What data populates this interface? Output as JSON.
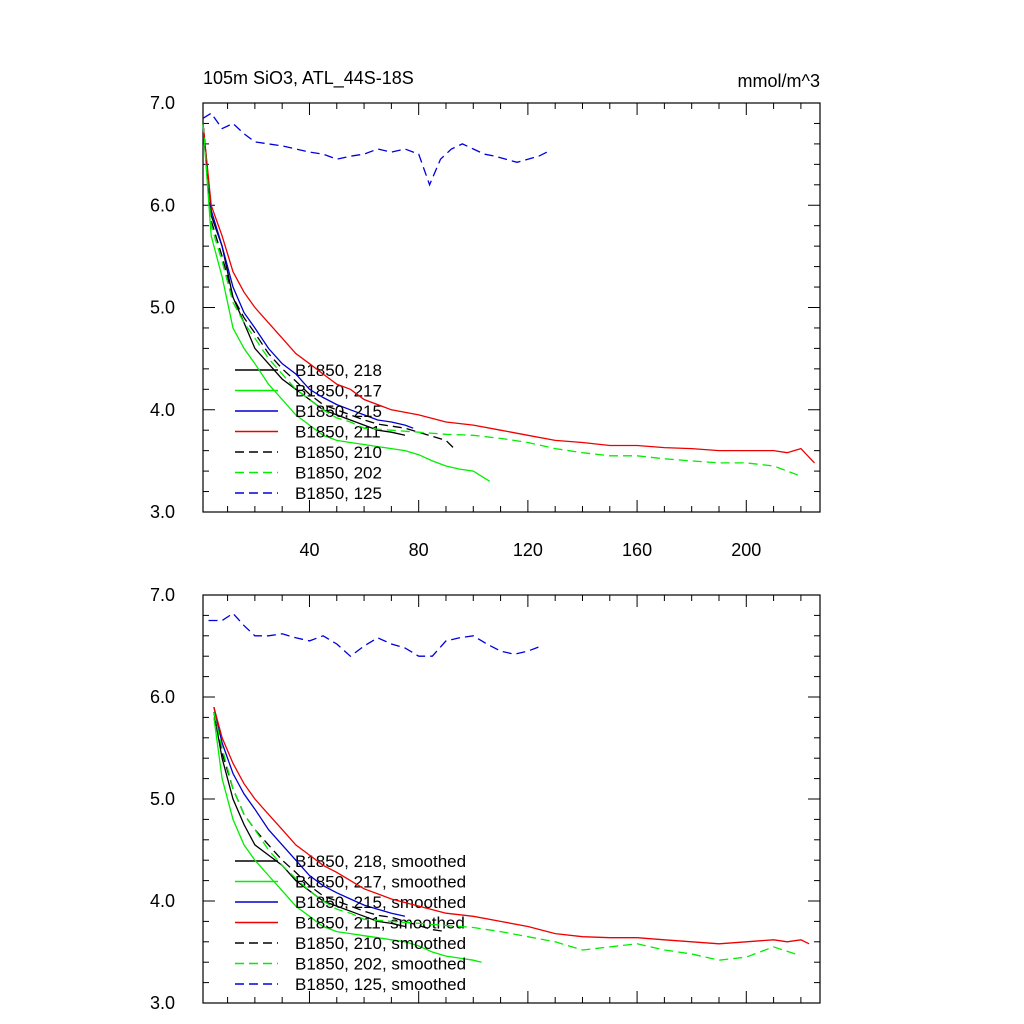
{
  "title": "105m SiO3, ATL_44S-18S",
  "units": "mmol/m^3",
  "colors": {
    "black": "#000000",
    "green": "#00ee00",
    "blue": "#0000cc",
    "red": "#ee0000",
    "blue_dashed": "#0000dd"
  },
  "chart_data": [
    {
      "type": "line",
      "panel": "top",
      "title": "105m SiO3, ATL_44S-18S",
      "units_label": "mmol/m^3",
      "xlim": [
        1,
        227
      ],
      "ylim": [
        3.0,
        7.0
      ],
      "x_ticks": [
        "40",
        "80",
        "120",
        "160",
        "200"
      ],
      "y_ticks": [
        "3.0",
        "4.0",
        "5.0",
        "6.0",
        "7.0"
      ],
      "legend_position": "lower-left",
      "series": [
        {
          "name": "B1850, 218",
          "color": "black",
          "dash": "solid",
          "x": [
            1,
            4,
            8,
            12,
            16,
            20,
            25,
            30,
            35,
            40,
            45,
            50,
            55,
            60,
            65,
            70,
            75
          ],
          "y": [
            6.8,
            5.9,
            5.6,
            5.1,
            4.85,
            4.6,
            4.45,
            4.3,
            4.2,
            4.1,
            4.0,
            3.95,
            3.9,
            3.85,
            3.8,
            3.78,
            3.75
          ]
        },
        {
          "name": "B1850, 217",
          "color": "green",
          "dash": "solid",
          "x": [
            1,
            4,
            8,
            12,
            16,
            20,
            25,
            30,
            35,
            40,
            45,
            50,
            55,
            60,
            65,
            70,
            75,
            80,
            85,
            90,
            95,
            100,
            106
          ],
          "y": [
            6.8,
            5.7,
            5.3,
            4.8,
            4.6,
            4.45,
            4.25,
            4.1,
            3.95,
            3.85,
            3.75,
            3.7,
            3.68,
            3.66,
            3.64,
            3.62,
            3.6,
            3.56,
            3.5,
            3.45,
            3.42,
            3.4,
            3.3
          ]
        },
        {
          "name": "B1850, 215",
          "color": "blue",
          "dash": "solid",
          "x": [
            1,
            4,
            8,
            12,
            16,
            20,
            25,
            30,
            35,
            40,
            45,
            50,
            55,
            60,
            65,
            70,
            75,
            78
          ],
          "y": [
            6.8,
            5.95,
            5.6,
            5.2,
            4.95,
            4.8,
            4.6,
            4.45,
            4.35,
            4.2,
            4.12,
            4.05,
            4.0,
            3.95,
            3.9,
            3.88,
            3.85,
            3.82
          ]
        },
        {
          "name": "B1850, 211",
          "color": "red",
          "dash": "solid",
          "x": [
            1,
            4,
            8,
            12,
            16,
            20,
            25,
            30,
            35,
            40,
            45,
            50,
            55,
            60,
            70,
            80,
            90,
            100,
            110,
            120,
            130,
            140,
            150,
            160,
            170,
            180,
            190,
            200,
            210,
            215,
            220,
            225
          ],
          "y": [
            6.8,
            6.0,
            5.7,
            5.35,
            5.15,
            5.0,
            4.85,
            4.7,
            4.55,
            4.45,
            4.35,
            4.25,
            4.2,
            4.1,
            4.0,
            3.95,
            3.88,
            3.85,
            3.8,
            3.75,
            3.7,
            3.68,
            3.65,
            3.65,
            3.63,
            3.62,
            3.6,
            3.6,
            3.6,
            3.58,
            3.62,
            3.48
          ]
        },
        {
          "name": "B1850, 210",
          "color": "black",
          "dash": "dashed",
          "x": [
            1,
            4,
            8,
            12,
            16,
            20,
            25,
            30,
            35,
            40,
            45,
            50,
            55,
            60,
            65,
            70,
            75,
            80,
            85,
            90,
            93
          ],
          "y": [
            6.8,
            5.85,
            5.5,
            5.1,
            4.9,
            4.75,
            4.55,
            4.4,
            4.28,
            4.15,
            4.05,
            4.0,
            3.95,
            3.9,
            3.86,
            3.84,
            3.82,
            3.78,
            3.74,
            3.7,
            3.62
          ]
        },
        {
          "name": "B1850, 202",
          "color": "green",
          "dash": "dashed",
          "x": [
            1,
            4,
            8,
            12,
            16,
            20,
            25,
            30,
            35,
            40,
            45,
            50,
            55,
            60,
            70,
            80,
            90,
            100,
            110,
            120,
            130,
            140,
            150,
            160,
            170,
            180,
            190,
            200,
            210,
            220
          ],
          "y": [
            6.8,
            5.8,
            5.45,
            5.05,
            4.85,
            4.7,
            4.5,
            4.35,
            4.2,
            4.1,
            4.0,
            3.92,
            3.88,
            3.82,
            3.8,
            3.78,
            3.76,
            3.75,
            3.72,
            3.68,
            3.62,
            3.58,
            3.55,
            3.55,
            3.52,
            3.5,
            3.48,
            3.48,
            3.45,
            3.35
          ]
        },
        {
          "name": "B1850, 125",
          "color": "blue_dashed",
          "dash": "dashed",
          "x": [
            1,
            4,
            8,
            12,
            16,
            20,
            25,
            30,
            35,
            40,
            45,
            50,
            55,
            60,
            65,
            70,
            75,
            80,
            84,
            88,
            92,
            96,
            100,
            104,
            108,
            112,
            116,
            120,
            124,
            127
          ],
          "y": [
            6.85,
            6.9,
            6.75,
            6.8,
            6.7,
            6.62,
            6.6,
            6.58,
            6.55,
            6.52,
            6.5,
            6.45,
            6.48,
            6.5,
            6.55,
            6.52,
            6.55,
            6.5,
            6.2,
            6.45,
            6.55,
            6.6,
            6.55,
            6.5,
            6.48,
            6.45,
            6.42,
            6.45,
            6.48,
            6.52
          ]
        }
      ]
    },
    {
      "type": "line",
      "panel": "bottom",
      "xlim": [
        1,
        227
      ],
      "ylim": [
        3.0,
        7.0
      ],
      "y_ticks": [
        "3.0",
        "4.0",
        "5.0",
        "6.0",
        "7.0"
      ],
      "legend_position": "lower-left",
      "series": [
        {
          "name": "B1850, 218, smoothed",
          "color": "black",
          "dash": "solid",
          "x": [
            5,
            8,
            12,
            16,
            20,
            25,
            30,
            35,
            40,
            45,
            50,
            55,
            60,
            65,
            70,
            75
          ],
          "y": [
            5.85,
            5.4,
            5.0,
            4.75,
            4.55,
            4.45,
            4.35,
            4.2,
            4.1,
            4.0,
            3.95,
            3.9,
            3.85,
            3.8,
            3.78,
            3.75
          ]
        },
        {
          "name": "B1850, 217, smoothed",
          "color": "green",
          "dash": "solid",
          "x": [
            5,
            8,
            12,
            16,
            20,
            25,
            30,
            35,
            40,
            45,
            50,
            55,
            60,
            65,
            70,
            75,
            80,
            85,
            90,
            95,
            100,
            103
          ],
          "y": [
            5.8,
            5.2,
            4.8,
            4.55,
            4.4,
            4.25,
            4.1,
            3.95,
            3.85,
            3.75,
            3.7,
            3.68,
            3.66,
            3.64,
            3.62,
            3.6,
            3.56,
            3.5,
            3.46,
            3.44,
            3.42,
            3.4
          ]
        },
        {
          "name": "B1850, 215, smoothed",
          "color": "blue",
          "dash": "solid",
          "x": [
            5,
            8,
            12,
            16,
            20,
            25,
            30,
            35,
            40,
            45,
            50,
            55,
            60,
            65,
            70,
            75
          ],
          "y": [
            5.9,
            5.55,
            5.25,
            5.05,
            4.9,
            4.7,
            4.55,
            4.4,
            4.25,
            4.15,
            4.08,
            4.02,
            3.96,
            3.92,
            3.88,
            3.85
          ]
        },
        {
          "name": "B1850, 211, smoothed",
          "color": "red",
          "dash": "solid",
          "x": [
            5,
            8,
            12,
            16,
            20,
            25,
            30,
            35,
            40,
            45,
            50,
            55,
            60,
            70,
            80,
            90,
            100,
            110,
            120,
            130,
            140,
            150,
            160,
            170,
            180,
            190,
            200,
            210,
            215,
            220,
            223
          ],
          "y": [
            5.9,
            5.6,
            5.35,
            5.15,
            5.0,
            4.85,
            4.7,
            4.55,
            4.45,
            4.35,
            4.28,
            4.2,
            4.12,
            4.02,
            3.95,
            3.88,
            3.85,
            3.8,
            3.75,
            3.68,
            3.65,
            3.64,
            3.64,
            3.62,
            3.6,
            3.58,
            3.6,
            3.62,
            3.6,
            3.62,
            3.58
          ]
        },
        {
          "name": "B1850, 210, smoothed",
          "color": "black",
          "dash": "dashed",
          "x": [
            5,
            8,
            12,
            16,
            20,
            25,
            30,
            35,
            40,
            45,
            50,
            55,
            60,
            65,
            70,
            75,
            80,
            85,
            90
          ],
          "y": [
            5.85,
            5.45,
            5.1,
            4.85,
            4.7,
            4.55,
            4.4,
            4.28,
            4.15,
            4.05,
            4.0,
            3.95,
            3.9,
            3.86,
            3.84,
            3.8,
            3.76,
            3.72,
            3.7
          ]
        },
        {
          "name": "B1850, 202, smoothed",
          "color": "green",
          "dash": "dashed",
          "x": [
            5,
            8,
            12,
            16,
            20,
            25,
            30,
            35,
            40,
            45,
            50,
            55,
            60,
            70,
            80,
            90,
            100,
            110,
            120,
            130,
            140,
            150,
            160,
            170,
            180,
            190,
            200,
            210,
            218
          ],
          "y": [
            5.85,
            5.5,
            5.1,
            4.85,
            4.7,
            4.5,
            4.35,
            4.22,
            4.1,
            4.0,
            3.92,
            3.88,
            3.82,
            3.8,
            3.78,
            3.76,
            3.74,
            3.7,
            3.65,
            3.6,
            3.52,
            3.55,
            3.58,
            3.52,
            3.48,
            3.42,
            3.45,
            3.55,
            3.48
          ]
        },
        {
          "name": "B1850, 125, smoothed",
          "color": "blue_dashed",
          "dash": "dashed",
          "x": [
            3,
            8,
            12,
            16,
            20,
            25,
            30,
            35,
            40,
            45,
            50,
            55,
            60,
            65,
            70,
            75,
            80,
            85,
            90,
            95,
            100,
            105,
            110,
            115,
            120,
            125
          ],
          "y": [
            6.75,
            6.75,
            6.82,
            6.7,
            6.6,
            6.6,
            6.62,
            6.58,
            6.55,
            6.6,
            6.52,
            6.4,
            6.5,
            6.58,
            6.52,
            6.48,
            6.4,
            6.4,
            6.55,
            6.58,
            6.6,
            6.52,
            6.45,
            6.42,
            6.45,
            6.5
          ]
        }
      ]
    }
  ]
}
